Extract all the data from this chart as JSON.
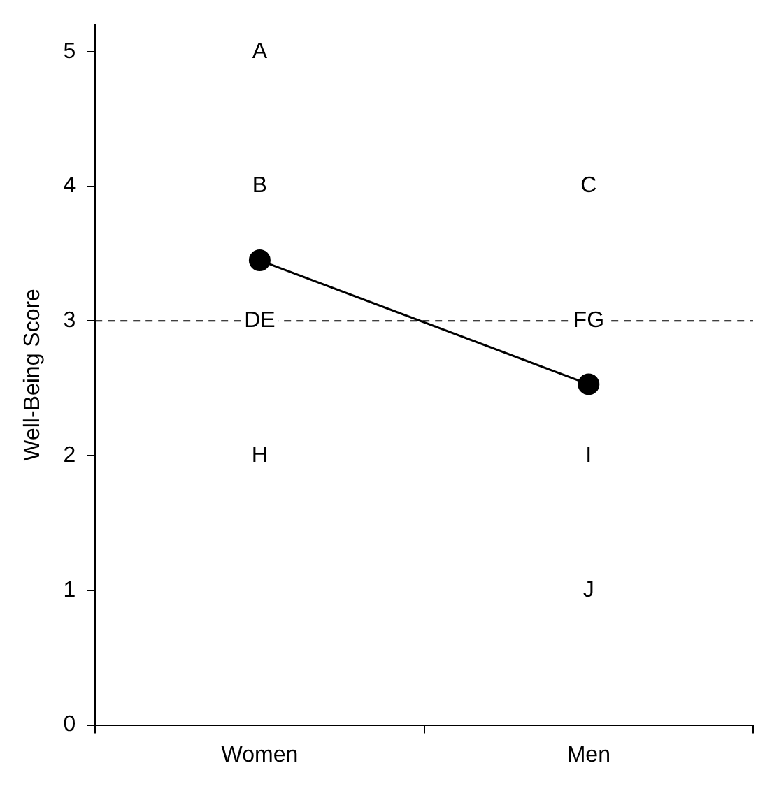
{
  "chart_data": {
    "type": "line",
    "ylabel": "Well-Being Score",
    "categories": [
      "Women",
      "Men"
    ],
    "series": [
      {
        "color": "#000000",
        "values": [
          3.45,
          2.53
        ]
      }
    ],
    "ylim": [
      0,
      5.2
    ],
    "yticks": [
      0,
      1,
      2,
      3,
      4,
      5
    ],
    "grid": false,
    "legend": false,
    "marker": "circle",
    "line_style": "solid",
    "ref_lines": [
      {
        "axis": "y",
        "value": 3,
        "color": "#000000",
        "line_style": "dashed"
      }
    ],
    "annotations": [
      {
        "text": "A",
        "x": "Women",
        "y": 5
      },
      {
        "text": "B",
        "x": "Women",
        "y": 4
      },
      {
        "text": "C",
        "x": "Men",
        "y": 4
      },
      {
        "text": "DE",
        "x": "Women",
        "y": 3
      },
      {
        "text": "FG",
        "x": "Men",
        "y": 3
      },
      {
        "text": "H",
        "x": "Women",
        "y": 2
      },
      {
        "text": "I",
        "x": "Men",
        "y": 2
      },
      {
        "text": "J",
        "x": "Men",
        "y": 1
      }
    ]
  }
}
